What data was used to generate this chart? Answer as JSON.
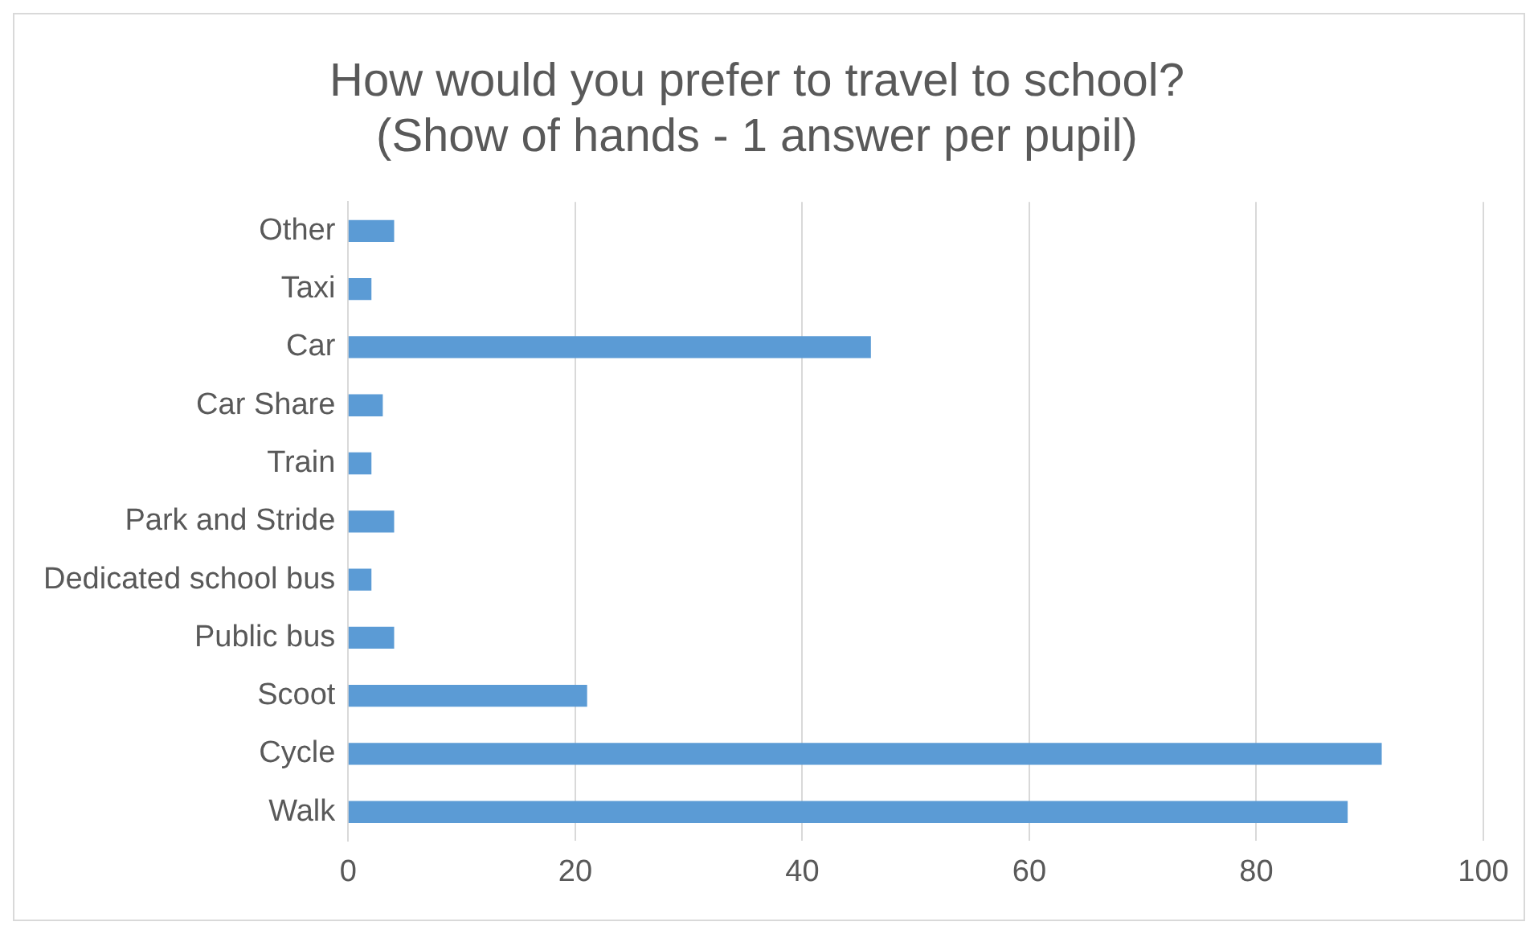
{
  "chart_data": {
    "type": "bar",
    "orientation": "horizontal",
    "title": [
      "How would you prefer to travel to school?",
      "(Show of hands - 1 answer per pupil)"
    ],
    "categories": [
      "Other",
      "Taxi",
      "Car",
      "Car Share",
      "Train",
      "Park and Stride",
      "Dedicated school bus",
      "Public bus",
      "Scoot",
      "Cycle",
      "Walk"
    ],
    "values": [
      4,
      2,
      46,
      3,
      2,
      4,
      2,
      4,
      21,
      91,
      88
    ],
    "color": "#5b9bd5",
    "xlim": [
      0,
      100
    ],
    "xticks": [
      0,
      20,
      40,
      60,
      80,
      100
    ],
    "grid": "x",
    "legend": false
  }
}
